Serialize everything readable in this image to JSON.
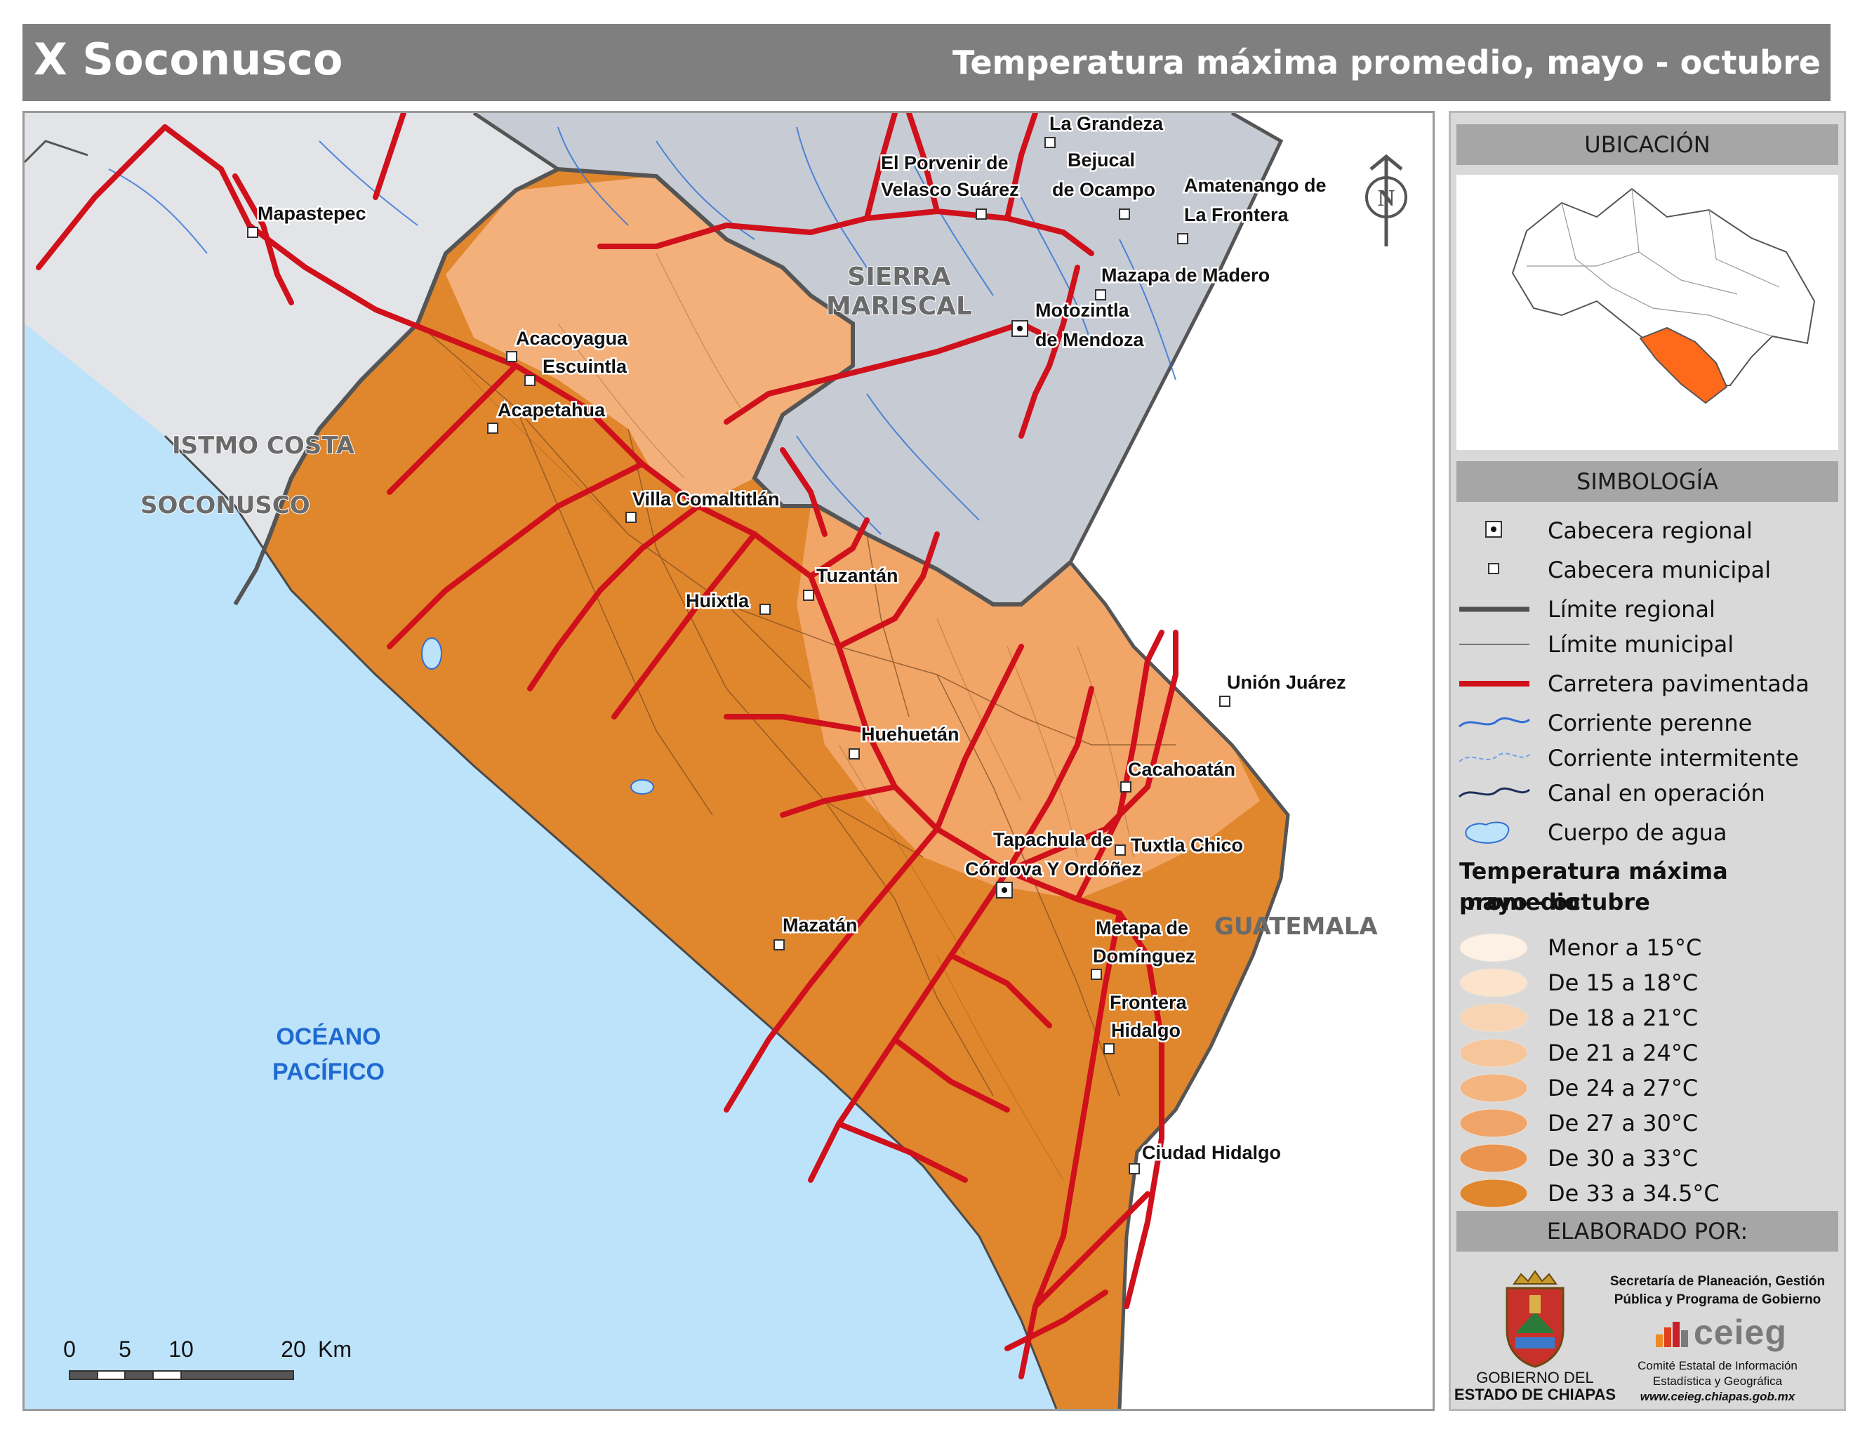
{
  "header": {
    "region": "X Soconusco",
    "subtitle": "Temperatura máxima promedio, mayo - octubre"
  },
  "map": {
    "region_labels": [
      "SIERRA",
      "MARISCAL",
      "ISTMO COSTA",
      "SOCONUSCO",
      "GUATEMALA"
    ],
    "ocean_label": [
      "OCÉANO",
      "PACÍFICO"
    ],
    "north_label": "N",
    "places": [
      {
        "name": "Mapastepec",
        "type": "municipal"
      },
      {
        "name": "Acacoyagua",
        "type": "municipal"
      },
      {
        "name": "Escuintla",
        "type": "municipal"
      },
      {
        "name": "Acapetahua",
        "type": "municipal"
      },
      {
        "name": "Villa Comaltitlán",
        "type": "municipal"
      },
      {
        "name": "Tuzantán",
        "type": "municipal"
      },
      {
        "name": "Huixtla",
        "type": "municipal"
      },
      {
        "name": "Huehuetán",
        "type": "municipal"
      },
      {
        "name": "Mazatán",
        "type": "municipal"
      },
      {
        "name": "Tapachula de Córdova Y Ordóñez",
        "type": "regional"
      },
      {
        "name": "Cacahoatán",
        "type": "municipal"
      },
      {
        "name": "Tuxtla Chico",
        "type": "municipal"
      },
      {
        "name": "Unión Juárez",
        "type": "municipal"
      },
      {
        "name": "Metapa de Domínguez",
        "type": "municipal"
      },
      {
        "name": "Frontera Hidalgo",
        "type": "municipal"
      },
      {
        "name": "Ciudad Hidalgo",
        "type": "municipal"
      },
      {
        "name": "La Grandeza",
        "type": "municipal"
      },
      {
        "name": "Bejucal de Ocampo",
        "type": "municipal"
      },
      {
        "name": "El Porvenir de Velasco Suárez",
        "type": "municipal"
      },
      {
        "name": "Amatenango de La Frontera",
        "type": "municipal"
      },
      {
        "name": "Mazapa de Madero",
        "type": "municipal"
      },
      {
        "name": "Motozintla de Mendoza",
        "type": "regional"
      }
    ],
    "place_label_lines": {
      "mapastepec": "Mapastepec",
      "acacoyagua": "Acacoyagua",
      "escuintla": "Escuintla",
      "acapetahua": "Acapetahua",
      "villa_comaltitlan": "Villa Comaltitlán",
      "tuzantan": "Tuzantán",
      "huixtla": "Huixtla",
      "huehuetan": "Huehuetán",
      "mazatan": "Mazatán",
      "tapachula_1": "Tapachula de",
      "tapachula_2": "Córdova Y Ordóñez",
      "cacahoatan": "Cacahoatán",
      "tuxtla_chico": "Tuxtla Chico",
      "union_juarez": "Unión Juárez",
      "metapa_1": "Metapa de",
      "metapa_2": "Domínguez",
      "frontera_1": "Frontera",
      "frontera_2": "Hidalgo",
      "ciudad_hidalgo": "Ciudad Hidalgo",
      "la_grandeza": "La Grandeza",
      "bejucal_1": "Bejucal",
      "bejucal_2": "de Ocampo",
      "porvenir_1": "El Porvenir de",
      "porvenir_2": "Velasco Suárez",
      "amatenango_1": "Amatenango de",
      "amatenango_2": "La Frontera",
      "mazapa": "Mazapa de Madero",
      "motozintla_1": "Motozintla",
      "motozintla_2": "de Mendoza"
    },
    "scale_bar": {
      "ticks": [
        "0",
        "5",
        "10",
        "20"
      ],
      "unit": "Km"
    },
    "colors": {
      "ocean": "#bde3fb",
      "outside": "#d9dbe0",
      "region_fill": "#e0862c",
      "region_fill_high": "#f3b07a",
      "roads": "#d0101b",
      "rivers": "#2f6fd6",
      "boundary": "#505050"
    }
  },
  "panel": {
    "location_title": "UBICACIÓN",
    "legend_title": "SIMBOLOGÍA",
    "legend": [
      {
        "label": "Cabecera regional",
        "symbol": "regional-seat"
      },
      {
        "label": "Cabecera municipal",
        "symbol": "municipal-seat"
      },
      {
        "label": "Límite regional",
        "symbol": "thick-line"
      },
      {
        "label": "Límite municipal",
        "symbol": "thin-line"
      },
      {
        "label": "Carretera pavimentada",
        "symbol": "red-line"
      },
      {
        "label": "Corriente perenne",
        "symbol": "blue-wave"
      },
      {
        "label": "Corriente intermitente",
        "symbol": "blue-dashed-wave"
      },
      {
        "label": "Canal en operación",
        "symbol": "dark-wave"
      },
      {
        "label": "Cuerpo de agua",
        "symbol": "water-blob"
      }
    ],
    "temp_title_1": "Temperatura máxima promedio",
    "temp_title_2": "mayo - octubre",
    "temperature_classes": [
      {
        "label": "Menor a 15°C",
        "color": "#fdf1e6"
      },
      {
        "label": "De 15 a 18°C",
        "color": "#fbe3cc"
      },
      {
        "label": "De 18 a 21°C",
        "color": "#f9d4b3"
      },
      {
        "label": "De 21 a 24°C",
        "color": "#f7c59a"
      },
      {
        "label": "De 24 a 27°C",
        "color": "#f4b581"
      },
      {
        "label": "De 27 a 30°C",
        "color": "#f0a468"
      },
      {
        "label": "De 30 a 33°C",
        "color": "#eb9450"
      },
      {
        "label": "De 33 a 34.5°C",
        "color": "#e0862c"
      }
    ],
    "credits_title": "ELABORADO POR:",
    "gov_1": "GOBIERNO DEL",
    "gov_2": "ESTADO DE CHIAPAS",
    "secretaria_1": "Secretaría de Planeación, Gestión",
    "secretaria_2": "Pública y Programa de Gobierno",
    "ceieg_logo": "ceieg",
    "ceieg_1": "Comité Estatal de Información",
    "ceieg_2": "Estadística y Geográfica",
    "ceieg_url": "www.ceieg.chiapas.gob.mx"
  }
}
